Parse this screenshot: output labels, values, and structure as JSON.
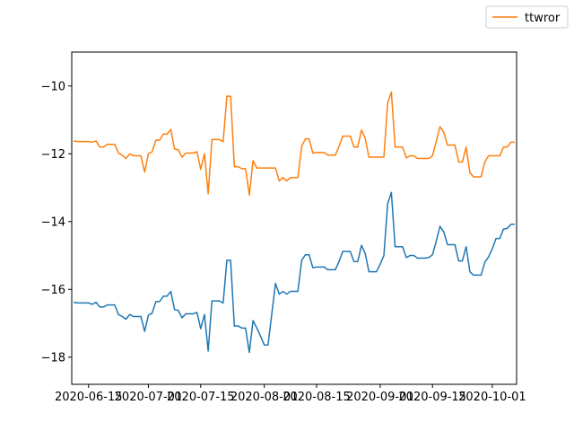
{
  "chart_data": {
    "type": "line",
    "title": "",
    "xlabel": "",
    "ylabel": "",
    "ylim": [
      -18.8,
      -9.0
    ],
    "xlim": [
      "2020-06-11",
      "2020-10-07"
    ],
    "grid": false,
    "legend_placement": "top-right",
    "x_ticks": [
      {
        "date": "2020-06-15",
        "label": "2020-06-15"
      },
      {
        "date": "2020-07-01",
        "label": "2020-07-01"
      },
      {
        "date": "2020-07-15",
        "label": "2020-07-15"
      },
      {
        "date": "2020-08-01",
        "label": "2020-08-01"
      },
      {
        "date": "2020-08-15",
        "label": "2020-08-15"
      },
      {
        "date": "2020-09-01",
        "label": "2020-09-01"
      },
      {
        "date": "2020-09-15",
        "label": "2020-09-15"
      },
      {
        "date": "2020-10-01",
        "label": "2020-10-01"
      }
    ],
    "y_ticks": [
      {
        "value": -10,
        "label": "−10"
      },
      {
        "value": -12,
        "label": "−12"
      },
      {
        "value": -14,
        "label": "−14"
      },
      {
        "value": -16,
        "label": "−16"
      },
      {
        "value": -18,
        "label": "−18"
      }
    ],
    "series": [
      {
        "name": "",
        "color": "#1f77b4",
        "points": [
          [
            "2020-06-11",
            -16.38
          ],
          [
            "2020-06-12",
            -16.4
          ],
          [
            "2020-06-13",
            -16.4
          ],
          [
            "2020-06-14",
            -16.4
          ],
          [
            "2020-06-15",
            -16.4
          ],
          [
            "2020-06-16",
            -16.44
          ],
          [
            "2020-06-17",
            -16.38
          ],
          [
            "2020-06-18",
            -16.52
          ],
          [
            "2020-06-19",
            -16.52
          ],
          [
            "2020-06-20",
            -16.46
          ],
          [
            "2020-06-21",
            -16.46
          ],
          [
            "2020-06-22",
            -16.46
          ],
          [
            "2020-06-23",
            -16.74
          ],
          [
            "2020-06-24",
            -16.8
          ],
          [
            "2020-06-25",
            -16.88
          ],
          [
            "2020-06-26",
            -16.74
          ],
          [
            "2020-06-27",
            -16.8
          ],
          [
            "2020-06-28",
            -16.8
          ],
          [
            "2020-06-29",
            -16.8
          ],
          [
            "2020-06-30",
            -17.24
          ],
          [
            "2020-07-01",
            -16.76
          ],
          [
            "2020-07-02",
            -16.7
          ],
          [
            "2020-07-03",
            -16.36
          ],
          [
            "2020-07-04",
            -16.36
          ],
          [
            "2020-07-05",
            -16.2
          ],
          [
            "2020-07-06",
            -16.2
          ],
          [
            "2020-07-07",
            -16.06
          ],
          [
            "2020-07-08",
            -16.6
          ],
          [
            "2020-07-09",
            -16.62
          ],
          [
            "2020-07-10",
            -16.84
          ],
          [
            "2020-07-11",
            -16.72
          ],
          [
            "2020-07-12",
            -16.72
          ],
          [
            "2020-07-13",
            -16.72
          ],
          [
            "2020-07-14",
            -16.68
          ],
          [
            "2020-07-15",
            -17.16
          ],
          [
            "2020-07-16",
            -16.74
          ],
          [
            "2020-07-17",
            -17.82
          ],
          [
            "2020-07-18",
            -16.34
          ],
          [
            "2020-07-19",
            -16.34
          ],
          [
            "2020-07-20",
            -16.34
          ],
          [
            "2020-07-21",
            -16.4
          ],
          [
            "2020-07-22",
            -15.14
          ],
          [
            "2020-07-23",
            -15.14
          ],
          [
            "2020-07-24",
            -17.08
          ],
          [
            "2020-07-25",
            -17.08
          ],
          [
            "2020-07-26",
            -17.14
          ],
          [
            "2020-07-27",
            -17.14
          ],
          [
            "2020-07-28",
            -17.86
          ],
          [
            "2020-07-29",
            -16.92
          ],
          [
            "2020-07-30",
            -17.14
          ],
          [
            "2020-07-31",
            -17.38
          ],
          [
            "2020-08-01",
            -17.64
          ],
          [
            "2020-08-02",
            -17.64
          ],
          [
            "2020-08-03",
            -16.74
          ],
          [
            "2020-08-04",
            -15.82
          ],
          [
            "2020-08-05",
            -16.14
          ],
          [
            "2020-08-06",
            -16.06
          ],
          [
            "2020-08-07",
            -16.14
          ],
          [
            "2020-08-08",
            -16.06
          ],
          [
            "2020-08-09",
            -16.06
          ],
          [
            "2020-08-10",
            -16.06
          ],
          [
            "2020-08-11",
            -15.14
          ],
          [
            "2020-08-12",
            -14.98
          ],
          [
            "2020-08-13",
            -14.98
          ],
          [
            "2020-08-14",
            -15.36
          ],
          [
            "2020-08-15",
            -15.34
          ],
          [
            "2020-08-16",
            -15.34
          ],
          [
            "2020-08-17",
            -15.34
          ],
          [
            "2020-08-18",
            -15.42
          ],
          [
            "2020-08-19",
            -15.42
          ],
          [
            "2020-08-20",
            -15.42
          ],
          [
            "2020-08-21",
            -15.18
          ],
          [
            "2020-08-22",
            -14.88
          ],
          [
            "2020-08-23",
            -14.88
          ],
          [
            "2020-08-24",
            -14.88
          ],
          [
            "2020-08-25",
            -15.18
          ],
          [
            "2020-08-26",
            -15.18
          ],
          [
            "2020-08-27",
            -14.7
          ],
          [
            "2020-08-28",
            -14.94
          ],
          [
            "2020-08-29",
            -15.48
          ],
          [
            "2020-08-30",
            -15.48
          ],
          [
            "2020-08-31",
            -15.48
          ],
          [
            "2020-09-01",
            -15.26
          ],
          [
            "2020-09-02",
            -15.0
          ],
          [
            "2020-09-03",
            -13.48
          ],
          [
            "2020-09-04",
            -13.14
          ],
          [
            "2020-09-05",
            -14.74
          ],
          [
            "2020-09-06",
            -14.74
          ],
          [
            "2020-09-07",
            -14.74
          ],
          [
            "2020-09-08",
            -15.06
          ],
          [
            "2020-09-09",
            -15.0
          ],
          [
            "2020-09-10",
            -15.0
          ],
          [
            "2020-09-11",
            -15.08
          ],
          [
            "2020-09-12",
            -15.08
          ],
          [
            "2020-09-13",
            -15.08
          ],
          [
            "2020-09-14",
            -15.06
          ],
          [
            "2020-09-15",
            -14.98
          ],
          [
            "2020-09-16",
            -14.58
          ],
          [
            "2020-09-17",
            -14.14
          ],
          [
            "2020-09-18",
            -14.3
          ],
          [
            "2020-09-19",
            -14.68
          ],
          [
            "2020-09-20",
            -14.68
          ],
          [
            "2020-09-21",
            -14.68
          ],
          [
            "2020-09-22",
            -15.16
          ],
          [
            "2020-09-23",
            -15.16
          ],
          [
            "2020-09-24",
            -14.74
          ],
          [
            "2020-09-25",
            -15.48
          ],
          [
            "2020-09-26",
            -15.58
          ],
          [
            "2020-09-27",
            -15.58
          ],
          [
            "2020-09-28",
            -15.58
          ],
          [
            "2020-09-29",
            -15.2
          ],
          [
            "2020-09-30",
            -15.04
          ],
          [
            "2020-10-01",
            -14.8
          ],
          [
            "2020-10-02",
            -14.5
          ],
          [
            "2020-10-03",
            -14.5
          ],
          [
            "2020-10-04",
            -14.22
          ],
          [
            "2020-10-05",
            -14.2
          ],
          [
            "2020-10-06",
            -14.08
          ],
          [
            "2020-10-07",
            -14.08
          ]
        ]
      },
      {
        "name": "ttwror",
        "color": "#ff7f0e",
        "points": [
          [
            "2020-06-11",
            -11.62
          ],
          [
            "2020-06-12",
            -11.64
          ],
          [
            "2020-06-13",
            -11.64
          ],
          [
            "2020-06-14",
            -11.64
          ],
          [
            "2020-06-15",
            -11.64
          ],
          [
            "2020-06-16",
            -11.66
          ],
          [
            "2020-06-17",
            -11.62
          ],
          [
            "2020-06-18",
            -11.8
          ],
          [
            "2020-06-19",
            -11.8
          ],
          [
            "2020-06-20",
            -11.72
          ],
          [
            "2020-06-21",
            -11.72
          ],
          [
            "2020-06-22",
            -11.72
          ],
          [
            "2020-06-23",
            -11.98
          ],
          [
            "2020-06-24",
            -12.04
          ],
          [
            "2020-06-25",
            -12.14
          ],
          [
            "2020-06-26",
            -12.0
          ],
          [
            "2020-06-27",
            -12.06
          ],
          [
            "2020-06-28",
            -12.06
          ],
          [
            "2020-06-29",
            -12.06
          ],
          [
            "2020-06-30",
            -12.54
          ],
          [
            "2020-07-01",
            -12.0
          ],
          [
            "2020-07-02",
            -11.94
          ],
          [
            "2020-07-03",
            -11.6
          ],
          [
            "2020-07-04",
            -11.6
          ],
          [
            "2020-07-05",
            -11.42
          ],
          [
            "2020-07-06",
            -11.42
          ],
          [
            "2020-07-07",
            -11.28
          ],
          [
            "2020-07-08",
            -11.86
          ],
          [
            "2020-07-09",
            -11.88
          ],
          [
            "2020-07-10",
            -12.1
          ],
          [
            "2020-07-11",
            -11.98
          ],
          [
            "2020-07-12",
            -11.98
          ],
          [
            "2020-07-13",
            -11.98
          ],
          [
            "2020-07-14",
            -11.94
          ],
          [
            "2020-07-15",
            -12.46
          ],
          [
            "2020-07-16",
            -12.0
          ],
          [
            "2020-07-17",
            -13.18
          ],
          [
            "2020-07-18",
            -11.58
          ],
          [
            "2020-07-19",
            -11.58
          ],
          [
            "2020-07-20",
            -11.58
          ],
          [
            "2020-07-21",
            -11.64
          ],
          [
            "2020-07-22",
            -10.3
          ],
          [
            "2020-07-23",
            -10.3
          ],
          [
            "2020-07-24",
            -12.38
          ],
          [
            "2020-07-25",
            -12.38
          ],
          [
            "2020-07-26",
            -12.44
          ],
          [
            "2020-07-27",
            -12.44
          ],
          [
            "2020-07-28",
            -13.22
          ],
          [
            "2020-07-29",
            -12.2
          ],
          [
            "2020-07-30",
            -12.42
          ],
          [
            "2020-07-31",
            -12.42
          ],
          [
            "2020-08-01",
            -12.42
          ],
          [
            "2020-08-02",
            -12.42
          ],
          [
            "2020-08-03",
            -12.42
          ],
          [
            "2020-08-04",
            -12.42
          ],
          [
            "2020-08-05",
            -12.8
          ],
          [
            "2020-08-06",
            -12.7
          ],
          [
            "2020-08-07",
            -12.8
          ],
          [
            "2020-08-08",
            -12.7
          ],
          [
            "2020-08-09",
            -12.7
          ],
          [
            "2020-08-10",
            -12.7
          ],
          [
            "2020-08-11",
            -11.78
          ],
          [
            "2020-08-12",
            -11.56
          ],
          [
            "2020-08-13",
            -11.56
          ],
          [
            "2020-08-14",
            -11.98
          ],
          [
            "2020-08-15",
            -11.96
          ],
          [
            "2020-08-16",
            -11.96
          ],
          [
            "2020-08-17",
            -11.96
          ],
          [
            "2020-08-18",
            -12.04
          ],
          [
            "2020-08-19",
            -12.04
          ],
          [
            "2020-08-20",
            -12.04
          ],
          [
            "2020-08-21",
            -11.78
          ],
          [
            "2020-08-22",
            -11.48
          ],
          [
            "2020-08-23",
            -11.48
          ],
          [
            "2020-08-24",
            -11.48
          ],
          [
            "2020-08-25",
            -11.8
          ],
          [
            "2020-08-26",
            -11.8
          ],
          [
            "2020-08-27",
            -11.3
          ],
          [
            "2020-08-28",
            -11.54
          ],
          [
            "2020-08-29",
            -12.1
          ],
          [
            "2020-08-30",
            -12.1
          ],
          [
            "2020-08-31",
            -12.1
          ],
          [
            "2020-09-01",
            -12.1
          ],
          [
            "2020-09-02",
            -12.1
          ],
          [
            "2020-09-03",
            -10.5
          ],
          [
            "2020-09-04",
            -10.18
          ],
          [
            "2020-09-05",
            -11.8
          ],
          [
            "2020-09-06",
            -11.8
          ],
          [
            "2020-09-07",
            -11.8
          ],
          [
            "2020-09-08",
            -12.12
          ],
          [
            "2020-09-09",
            -12.06
          ],
          [
            "2020-09-10",
            -12.06
          ],
          [
            "2020-09-11",
            -12.14
          ],
          [
            "2020-09-12",
            -12.14
          ],
          [
            "2020-09-13",
            -12.14
          ],
          [
            "2020-09-14",
            -12.14
          ],
          [
            "2020-09-15",
            -12.06
          ],
          [
            "2020-09-16",
            -11.64
          ],
          [
            "2020-09-17",
            -11.2
          ],
          [
            "2020-09-18",
            -11.36
          ],
          [
            "2020-09-19",
            -11.74
          ],
          [
            "2020-09-20",
            -11.74
          ],
          [
            "2020-09-21",
            -11.74
          ],
          [
            "2020-09-22",
            -12.24
          ],
          [
            "2020-09-23",
            -12.24
          ],
          [
            "2020-09-24",
            -11.8
          ],
          [
            "2020-09-25",
            -12.56
          ],
          [
            "2020-09-26",
            -12.68
          ],
          [
            "2020-09-27",
            -12.68
          ],
          [
            "2020-09-28",
            -12.68
          ],
          [
            "2020-09-29",
            -12.24
          ],
          [
            "2020-09-30",
            -12.06
          ],
          [
            "2020-10-01",
            -12.06
          ],
          [
            "2020-10-02",
            -12.06
          ],
          [
            "2020-10-03",
            -12.06
          ],
          [
            "2020-10-04",
            -11.8
          ],
          [
            "2020-10-05",
            -11.8
          ],
          [
            "2020-10-06",
            -11.66
          ],
          [
            "2020-10-07",
            -11.66
          ]
        ]
      }
    ]
  }
}
